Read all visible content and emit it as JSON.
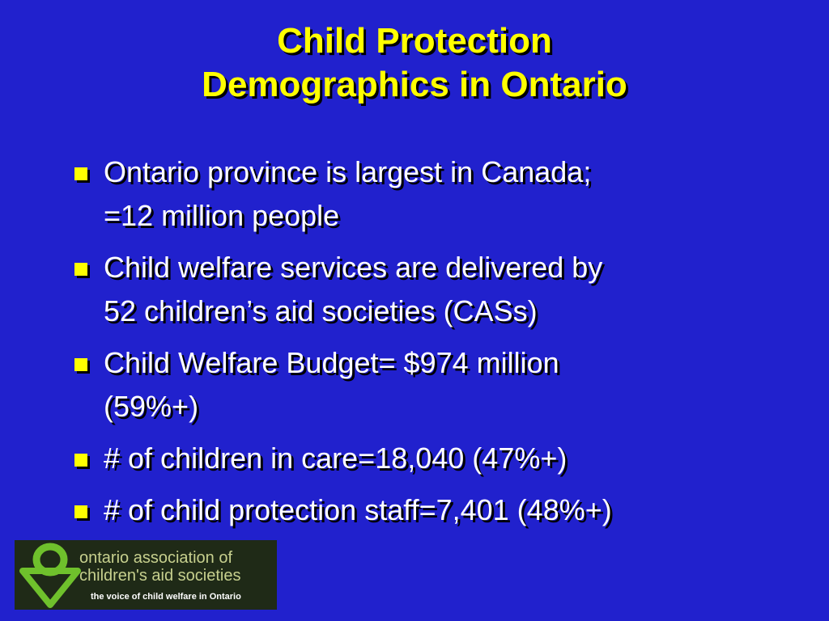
{
  "slide": {
    "title_line1": "Child Protection",
    "title_line2": "Demographics in Ontario",
    "bullets": [
      {
        "line1": "Ontario province is largest in Canada;",
        "line2": "=12 million people"
      },
      {
        "line1": "Child welfare services are delivered by",
        "line2": "52 children’s aid societies (CASs)"
      },
      {
        "line1": "Child Welfare Budget= $974 million",
        "line2": "(59%+)"
      },
      {
        "line1": "# of children in care=18,040 (47%+)"
      },
      {
        "line1": "# of child protection staff=7,401 (48%+)"
      }
    ]
  },
  "logo": {
    "name_line1": "ontario association of",
    "name_line2": "children's aid societies",
    "tagline": "the voice of child welfare in Ontario"
  },
  "colors": {
    "background": "#2121cd",
    "title": "#ffff00",
    "bullet_text": "#ffffff",
    "bullet_marker": "#ffff00",
    "logo_bg": "#1f2a17",
    "logo_green": "#6fc12c",
    "logo_text": "#c7d08e"
  }
}
